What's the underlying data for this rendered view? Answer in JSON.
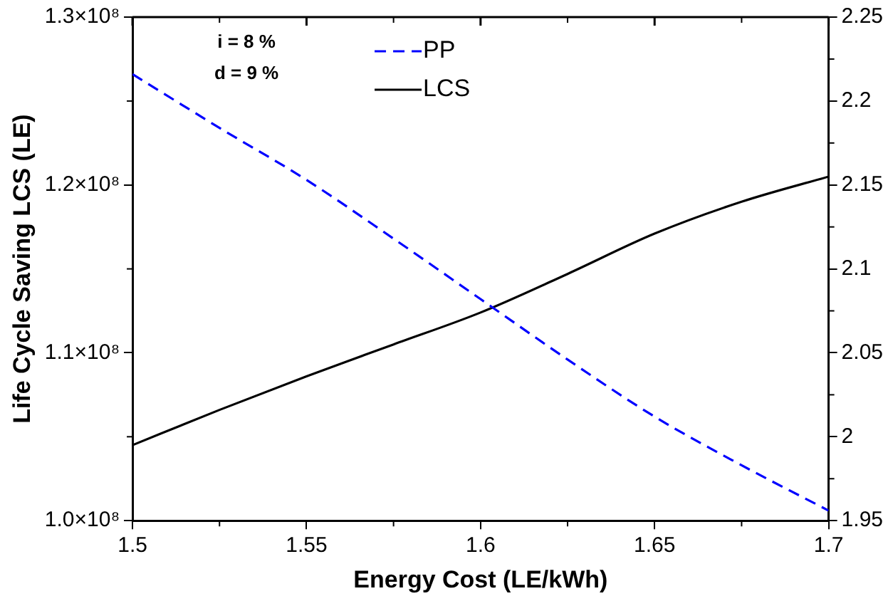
{
  "chart_data": {
    "type": "line",
    "xlabel": "Energy Cost (LE/kWh)",
    "ylabel": "Life Cycle Saving LCS (LE)",
    "x": [
      1.5,
      1.525,
      1.55,
      1.575,
      1.6,
      1.625,
      1.65,
      1.675,
      1.7
    ],
    "series": [
      {
        "name": "PP",
        "color": "#0000ff",
        "axis": "y2",
        "line_style": "dashed",
        "values": [
          2.216,
          2.184,
          2.153,
          2.118,
          2.082,
          2.046,
          2.012,
          1.983,
          1.956
        ]
      },
      {
        "name": "LCS",
        "color": "#000000",
        "line_style": "solid",
        "values": [
          104500000,
          106600000,
          108600000,
          110500000,
          112400000,
          114700000,
          117100000,
          119000000,
          120500000
        ]
      }
    ],
    "xlim": [
      1.5,
      1.7
    ],
    "xticks": [
      1.5,
      1.55,
      1.6,
      1.65,
      1.7
    ],
    "ylim": [
      100000000,
      130000000
    ],
    "yticks": [
      {
        "value": 100000000,
        "label": "1.0×10⁸"
      },
      {
        "value": 110000000,
        "label": "1.1×10⁸"
      },
      {
        "value": 120000000,
        "label": "1.2×10⁸"
      },
      {
        "value": 130000000,
        "label": "1.3×10⁸"
      }
    ],
    "y2lim": [
      1.95,
      2.25
    ],
    "y2ticks": [
      1.95,
      2,
      2.05,
      2.1,
      2.15,
      2.2,
      2.25
    ],
    "annotations": [
      "i = 8 %",
      "d = 9 %"
    ],
    "legend": "top",
    "grid": false,
    "marker": "none"
  }
}
